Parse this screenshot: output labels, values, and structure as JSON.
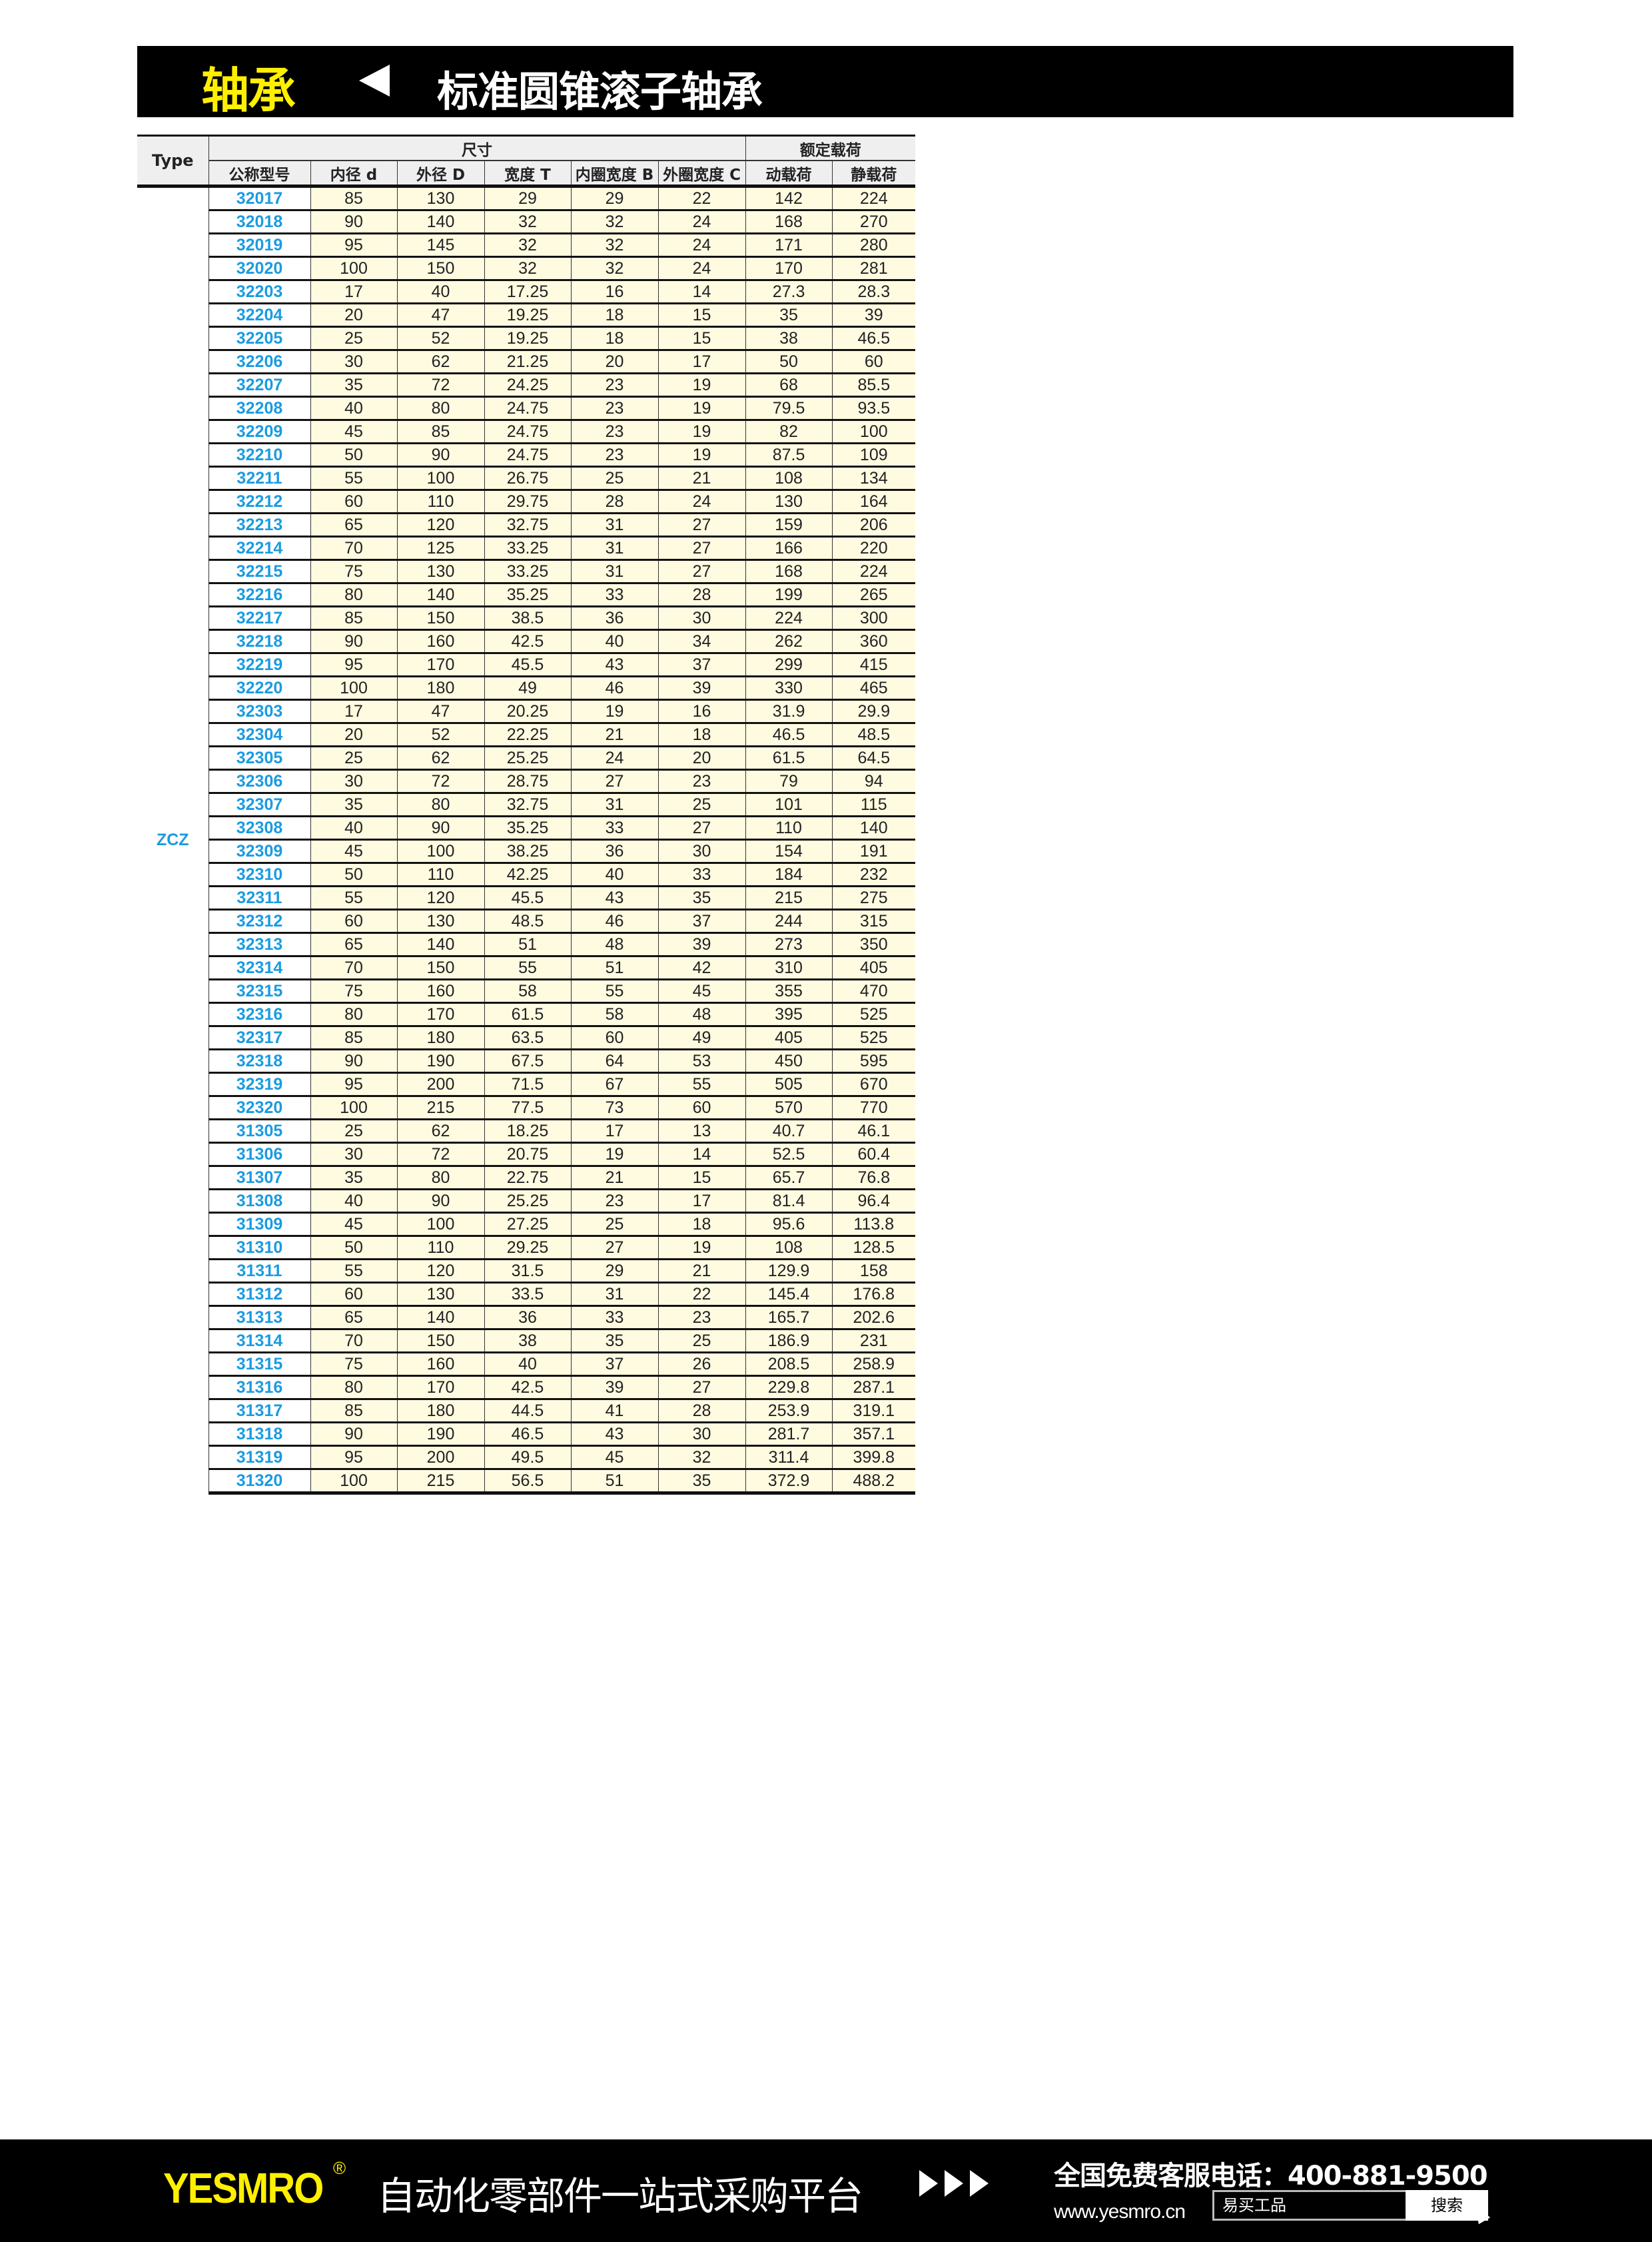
{
  "header": {
    "category": "轴承",
    "title": "标准圆锥滚子轴承"
  },
  "table": {
    "type_header": "Type",
    "group_dimensions": "尺寸",
    "group_load": "额定载荷",
    "columns": [
      "公称型号",
      "内径 d",
      "外径 D",
      "宽度 T",
      "内圈宽度 B",
      "外圈宽度 C",
      "动载荷",
      "静载荷"
    ],
    "type_value": "ZCZ",
    "rows": [
      [
        "32017",
        "85",
        "130",
        "29",
        "29",
        "22",
        "142",
        "224"
      ],
      [
        "32018",
        "90",
        "140",
        "32",
        "32",
        "24",
        "168",
        "270"
      ],
      [
        "32019",
        "95",
        "145",
        "32",
        "32",
        "24",
        "171",
        "280"
      ],
      [
        "32020",
        "100",
        "150",
        "32",
        "32",
        "24",
        "170",
        "281"
      ],
      [
        "32203",
        "17",
        "40",
        "17.25",
        "16",
        "14",
        "27.3",
        "28.3"
      ],
      [
        "32204",
        "20",
        "47",
        "19.25",
        "18",
        "15",
        "35",
        "39"
      ],
      [
        "32205",
        "25",
        "52",
        "19.25",
        "18",
        "15",
        "38",
        "46.5"
      ],
      [
        "32206",
        "30",
        "62",
        "21.25",
        "20",
        "17",
        "50",
        "60"
      ],
      [
        "32207",
        "35",
        "72",
        "24.25",
        "23",
        "19",
        "68",
        "85.5"
      ],
      [
        "32208",
        "40",
        "80",
        "24.75",
        "23",
        "19",
        "79.5",
        "93.5"
      ],
      [
        "32209",
        "45",
        "85",
        "24.75",
        "23",
        "19",
        "82",
        "100"
      ],
      [
        "32210",
        "50",
        "90",
        "24.75",
        "23",
        "19",
        "87.5",
        "109"
      ],
      [
        "32211",
        "55",
        "100",
        "26.75",
        "25",
        "21",
        "108",
        "134"
      ],
      [
        "32212",
        "60",
        "110",
        "29.75",
        "28",
        "24",
        "130",
        "164"
      ],
      [
        "32213",
        "65",
        "120",
        "32.75",
        "31",
        "27",
        "159",
        "206"
      ],
      [
        "32214",
        "70",
        "125",
        "33.25",
        "31",
        "27",
        "166",
        "220"
      ],
      [
        "32215",
        "75",
        "130",
        "33.25",
        "31",
        "27",
        "168",
        "224"
      ],
      [
        "32216",
        "80",
        "140",
        "35.25",
        "33",
        "28",
        "199",
        "265"
      ],
      [
        "32217",
        "85",
        "150",
        "38.5",
        "36",
        "30",
        "224",
        "300"
      ],
      [
        "32218",
        "90",
        "160",
        "42.5",
        "40",
        "34",
        "262",
        "360"
      ],
      [
        "32219",
        "95",
        "170",
        "45.5",
        "43",
        "37",
        "299",
        "415"
      ],
      [
        "32220",
        "100",
        "180",
        "49",
        "46",
        "39",
        "330",
        "465"
      ],
      [
        "32303",
        "17",
        "47",
        "20.25",
        "19",
        "16",
        "31.9",
        "29.9"
      ],
      [
        "32304",
        "20",
        "52",
        "22.25",
        "21",
        "18",
        "46.5",
        "48.5"
      ],
      [
        "32305",
        "25",
        "62",
        "25.25",
        "24",
        "20",
        "61.5",
        "64.5"
      ],
      [
        "32306",
        "30",
        "72",
        "28.75",
        "27",
        "23",
        "79",
        "94"
      ],
      [
        "32307",
        "35",
        "80",
        "32.75",
        "31",
        "25",
        "101",
        "115"
      ],
      [
        "32308",
        "40",
        "90",
        "35.25",
        "33",
        "27",
        "110",
        "140"
      ],
      [
        "32309",
        "45",
        "100",
        "38.25",
        "36",
        "30",
        "154",
        "191"
      ],
      [
        "32310",
        "50",
        "110",
        "42.25",
        "40",
        "33",
        "184",
        "232"
      ],
      [
        "32311",
        "55",
        "120",
        "45.5",
        "43",
        "35",
        "215",
        "275"
      ],
      [
        "32312",
        "60",
        "130",
        "48.5",
        "46",
        "37",
        "244",
        "315"
      ],
      [
        "32313",
        "65",
        "140",
        "51",
        "48",
        "39",
        "273",
        "350"
      ],
      [
        "32314",
        "70",
        "150",
        "55",
        "51",
        "42",
        "310",
        "405"
      ],
      [
        "32315",
        "75",
        "160",
        "58",
        "55",
        "45",
        "355",
        "470"
      ],
      [
        "32316",
        "80",
        "170",
        "61.5",
        "58",
        "48",
        "395",
        "525"
      ],
      [
        "32317",
        "85",
        "180",
        "63.5",
        "60",
        "49",
        "405",
        "525"
      ],
      [
        "32318",
        "90",
        "190",
        "67.5",
        "64",
        "53",
        "450",
        "595"
      ],
      [
        "32319",
        "95",
        "200",
        "71.5",
        "67",
        "55",
        "505",
        "670"
      ],
      [
        "32320",
        "100",
        "215",
        "77.5",
        "73",
        "60",
        "570",
        "770"
      ],
      [
        "31305",
        "25",
        "62",
        "18.25",
        "17",
        "13",
        "40.7",
        "46.1"
      ],
      [
        "31306",
        "30",
        "72",
        "20.75",
        "19",
        "14",
        "52.5",
        "60.4"
      ],
      [
        "31307",
        "35",
        "80",
        "22.75",
        "21",
        "15",
        "65.7",
        "76.8"
      ],
      [
        "31308",
        "40",
        "90",
        "25.25",
        "23",
        "17",
        "81.4",
        "96.4"
      ],
      [
        "31309",
        "45",
        "100",
        "27.25",
        "25",
        "18",
        "95.6",
        "113.8"
      ],
      [
        "31310",
        "50",
        "110",
        "29.25",
        "27",
        "19",
        "108",
        "128.5"
      ],
      [
        "31311",
        "55",
        "120",
        "31.5",
        "29",
        "21",
        "129.9",
        "158"
      ],
      [
        "31312",
        "60",
        "130",
        "33.5",
        "31",
        "22",
        "145.4",
        "176.8"
      ],
      [
        "31313",
        "65",
        "140",
        "36",
        "33",
        "23",
        "165.7",
        "202.6"
      ],
      [
        "31314",
        "70",
        "150",
        "38",
        "35",
        "25",
        "186.9",
        "231"
      ],
      [
        "31315",
        "75",
        "160",
        "40",
        "37",
        "26",
        "208.5",
        "258.9"
      ],
      [
        "31316",
        "80",
        "170",
        "42.5",
        "39",
        "27",
        "229.8",
        "287.1"
      ],
      [
        "31317",
        "85",
        "180",
        "44.5",
        "41",
        "28",
        "253.9",
        "319.1"
      ],
      [
        "31318",
        "90",
        "190",
        "46.5",
        "43",
        "30",
        "281.7",
        "357.1"
      ],
      [
        "31319",
        "95",
        "200",
        "49.5",
        "45",
        "32",
        "311.4",
        "399.8"
      ],
      [
        "31320",
        "100",
        "215",
        "56.5",
        "51",
        "35",
        "372.9",
        "488.2"
      ]
    ]
  },
  "footer": {
    "logo": "YESMRO",
    "registered": "®",
    "slogan": "自动化零部件一站式采购平台",
    "phone": "全国免费客服电话：400-881-9500",
    "website": "www.yesmro.cn",
    "search_value": "易买工品",
    "search_button": "搜索"
  },
  "colors": {
    "accent_yellow": "#fff000",
    "model_blue": "#1a9be0",
    "cell_bg": "#fffbe1",
    "header_bg": "#efefef"
  }
}
